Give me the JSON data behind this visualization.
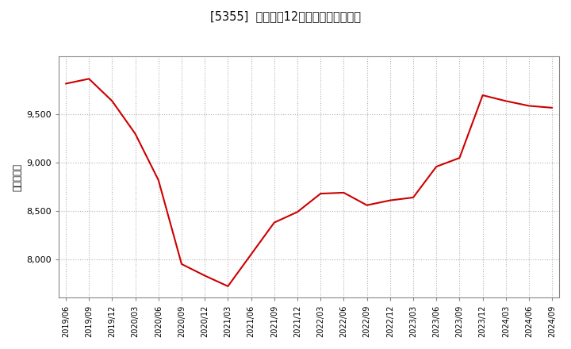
{
  "title": "[5355]  売上高の12か月移動合計の推移",
  "ylabel": "（百万円）",
  "line_color": "#cc0000",
  "background_color": "#ffffff",
  "plot_bg_color": "#ffffff",
  "grid_color": "#aaaaaa",
  "dates": [
    "2019/06",
    "2019/09",
    "2019/12",
    "2020/03",
    "2020/06",
    "2020/09",
    "2020/12",
    "2021/03",
    "2021/06",
    "2021/09",
    "2021/12",
    "2022/03",
    "2022/06",
    "2022/09",
    "2022/12",
    "2023/03",
    "2023/06",
    "2023/09",
    "2023/12",
    "2024/03",
    "2024/06",
    "2024/09"
  ],
  "values": [
    9820,
    9870,
    9640,
    9300,
    8820,
    7950,
    7830,
    7720,
    8050,
    8380,
    8490,
    8680,
    8690,
    8560,
    8610,
    8640,
    8960,
    9050,
    9700,
    9640,
    9590,
    9570
  ],
  "yticks": [
    8000,
    8500,
    9000,
    9500
  ],
  "ylim": [
    7600,
    10100
  ],
  "line_width": 1.5
}
